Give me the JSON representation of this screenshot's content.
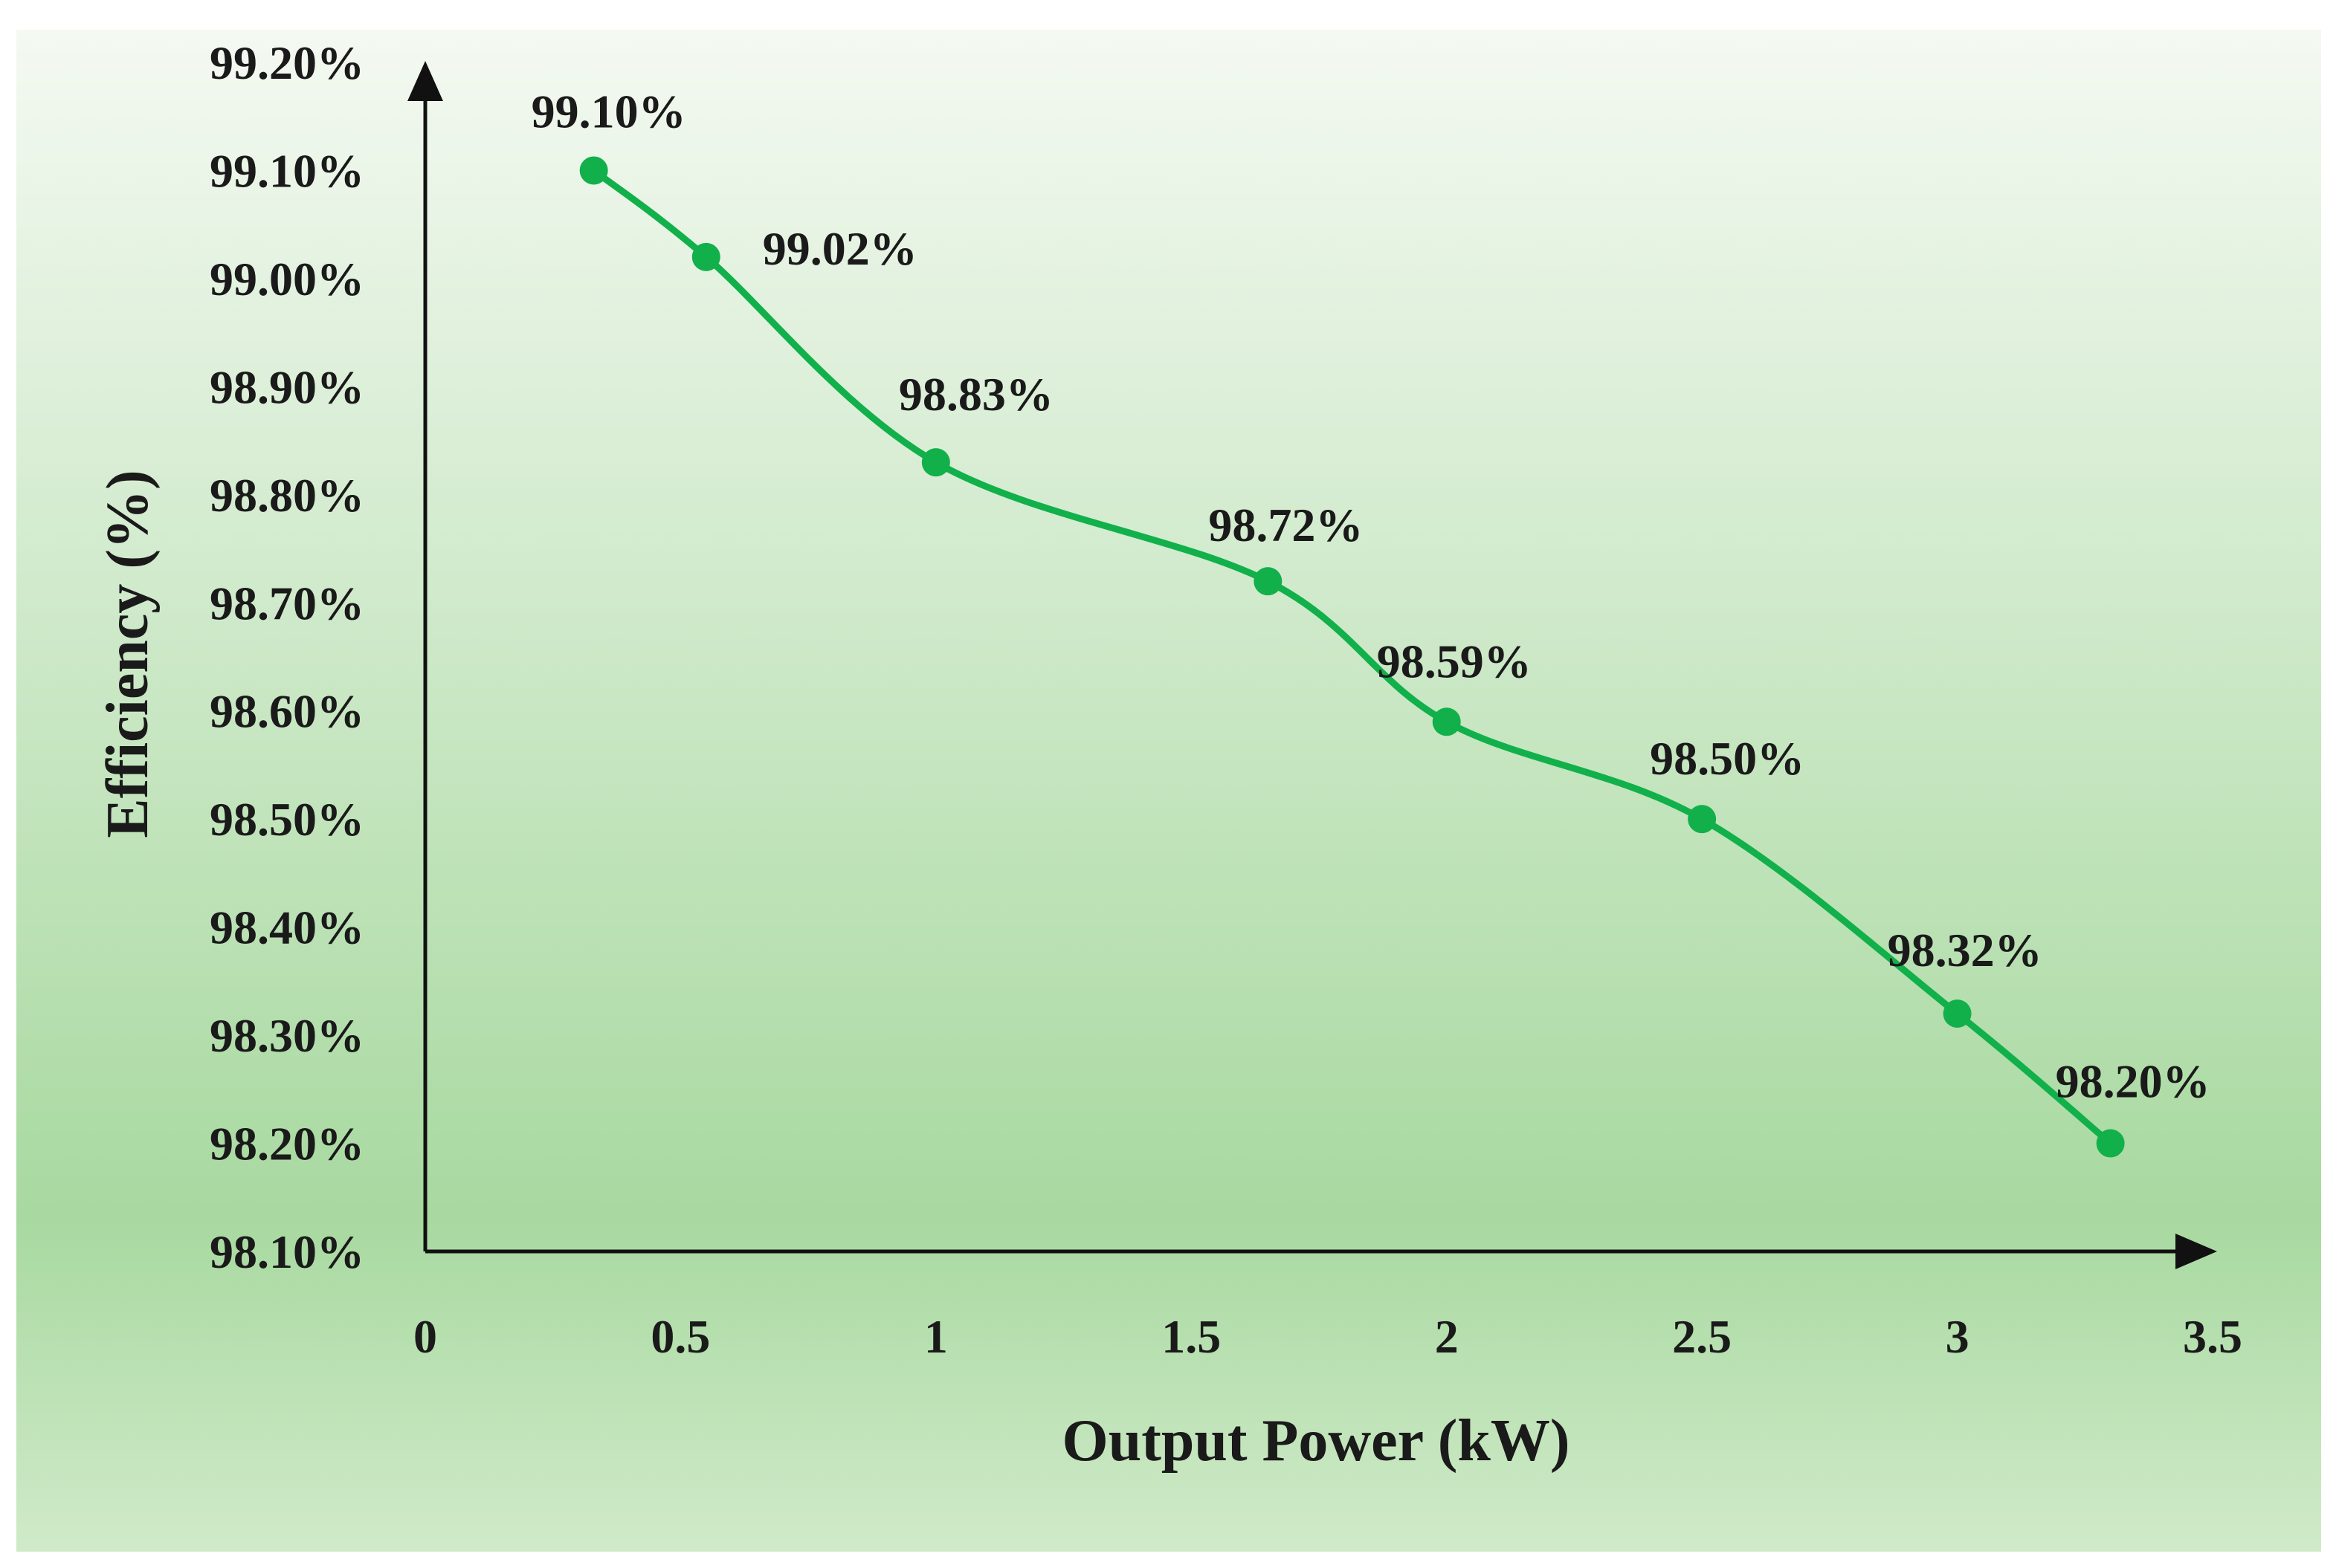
{
  "chart_data": {
    "type": "line",
    "title": "",
    "xlabel": "Output Power (kW)",
    "ylabel": "Efficiency (%)",
    "xlim": [
      0,
      3.5
    ],
    "ylim": [
      98.1,
      99.2
    ],
    "x_ticks": [
      "0",
      "0.5",
      "1",
      "1.5",
      "2",
      "2.5",
      "3",
      "3.5"
    ],
    "x_tick_values": [
      0,
      0.5,
      1,
      1.5,
      2,
      2.5,
      3,
      3.5
    ],
    "y_ticks": [
      "99.20%",
      "99.10%",
      "99.00%",
      "98.90%",
      "98.80%",
      "98.70%",
      "98.60%",
      "98.50%",
      "98.40%",
      "98.30%",
      "98.20%",
      "98.10%"
    ],
    "y_tick_values": [
      99.2,
      99.1,
      99.0,
      98.9,
      98.8,
      98.7,
      98.6,
      98.5,
      98.4,
      98.3,
      98.2,
      98.1
    ],
    "series": [
      {
        "name": "Efficiency",
        "color": "#11b04b",
        "x": [
          0.33,
          0.55,
          1.0,
          1.65,
          2.0,
          2.5,
          3.0,
          3.3
        ],
        "y": [
          99.1,
          99.02,
          98.83,
          98.72,
          98.59,
          98.5,
          98.32,
          98.2
        ],
        "labels": [
          "99.10%",
          "99.02%",
          "98.83%",
          "98.72%",
          "98.59%",
          "98.50%",
          "98.32%",
          "98.20%"
        ]
      }
    ],
    "grid": false,
    "legend": "none",
    "background_gradient": [
      "#f4f9f2",
      "#a8d9a0",
      "#d0eac9"
    ]
  }
}
